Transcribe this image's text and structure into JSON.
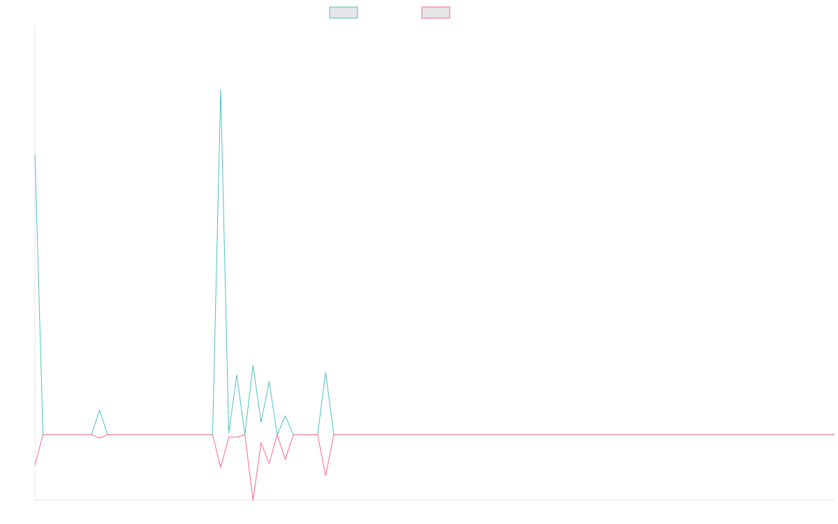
{
  "chart_data": {
    "type": "line",
    "title": "",
    "xlabel": "",
    "ylabel": "",
    "grid": false,
    "legend_position": "top",
    "ylim": [
      -8,
      50
    ],
    "x": [
      0,
      1,
      2,
      3,
      4,
      5,
      6,
      7,
      8,
      9,
      10,
      11,
      12,
      13,
      14,
      15,
      16,
      17,
      18,
      19,
      20,
      21,
      22,
      23,
      24,
      25,
      26,
      27,
      28,
      29,
      30,
      31,
      32,
      33,
      34,
      35,
      36,
      37,
      38,
      39,
      40,
      41,
      42,
      43,
      44,
      45,
      46,
      47,
      48,
      49,
      50,
      51,
      52,
      53,
      54,
      55,
      56,
      57,
      58,
      59,
      60,
      61,
      62,
      63,
      64,
      65,
      66,
      67,
      68,
      69,
      70,
      71,
      72,
      73,
      74,
      75,
      76,
      77,
      78,
      79,
      80,
      81,
      82,
      83,
      84,
      85,
      86,
      87,
      88,
      89,
      90,
      91,
      92,
      93,
      94,
      95,
      96,
      97,
      98,
      99
    ],
    "series": [
      {
        "name": "",
        "color": "#4bc0c0",
        "fill": "#e6e6e6",
        "values": [
          34.3,
          0,
          0,
          0,
          0,
          0,
          0,
          0,
          3,
          0,
          0,
          0,
          0,
          0,
          0,
          0,
          0,
          0,
          0,
          0,
          0,
          0,
          0,
          42.2,
          0.2,
          7.3,
          0,
          8.5,
          1.5,
          6.5,
          0,
          2.3,
          0,
          0,
          0,
          0,
          7.6,
          0,
          0,
          0,
          0,
          0,
          0,
          0,
          0,
          0,
          0,
          0,
          0,
          0,
          0,
          0,
          0,
          0,
          0,
          0,
          0,
          0,
          0,
          0,
          0,
          0,
          0,
          0,
          0,
          0,
          0,
          0,
          0,
          0,
          0,
          0,
          0,
          0,
          0,
          0,
          0,
          0,
          0,
          0,
          0,
          0,
          0,
          0,
          0,
          0,
          0,
          0,
          0,
          0,
          0,
          0,
          0,
          0,
          0,
          0,
          0,
          0,
          0,
          0
        ]
      },
      {
        "name": "",
        "color": "#ff6384",
        "fill": "#e6e6e6",
        "values": [
          -3.7,
          0,
          0,
          0,
          0,
          0,
          0,
          0,
          -0.4,
          0,
          0,
          0,
          0,
          0,
          0,
          0,
          0,
          0,
          0,
          0,
          0,
          0,
          0,
          -4,
          -0.3,
          -0.3,
          0,
          -8,
          -1,
          -3.5,
          0,
          -3,
          0,
          0,
          0,
          0,
          -5,
          0,
          0,
          0,
          0,
          0,
          0,
          0,
          0,
          0,
          0,
          0,
          0,
          0,
          0,
          0,
          0,
          0,
          0,
          0,
          0,
          0,
          0,
          0,
          0,
          0,
          0,
          0,
          0,
          0,
          0,
          0,
          0,
          0,
          0,
          0,
          0,
          0,
          0,
          0,
          0,
          0,
          0,
          0,
          0,
          0,
          0,
          0,
          0,
          0,
          0,
          0,
          0,
          0,
          0,
          0,
          0,
          0,
          0,
          0,
          0,
          0,
          0,
          0
        ]
      }
    ]
  }
}
